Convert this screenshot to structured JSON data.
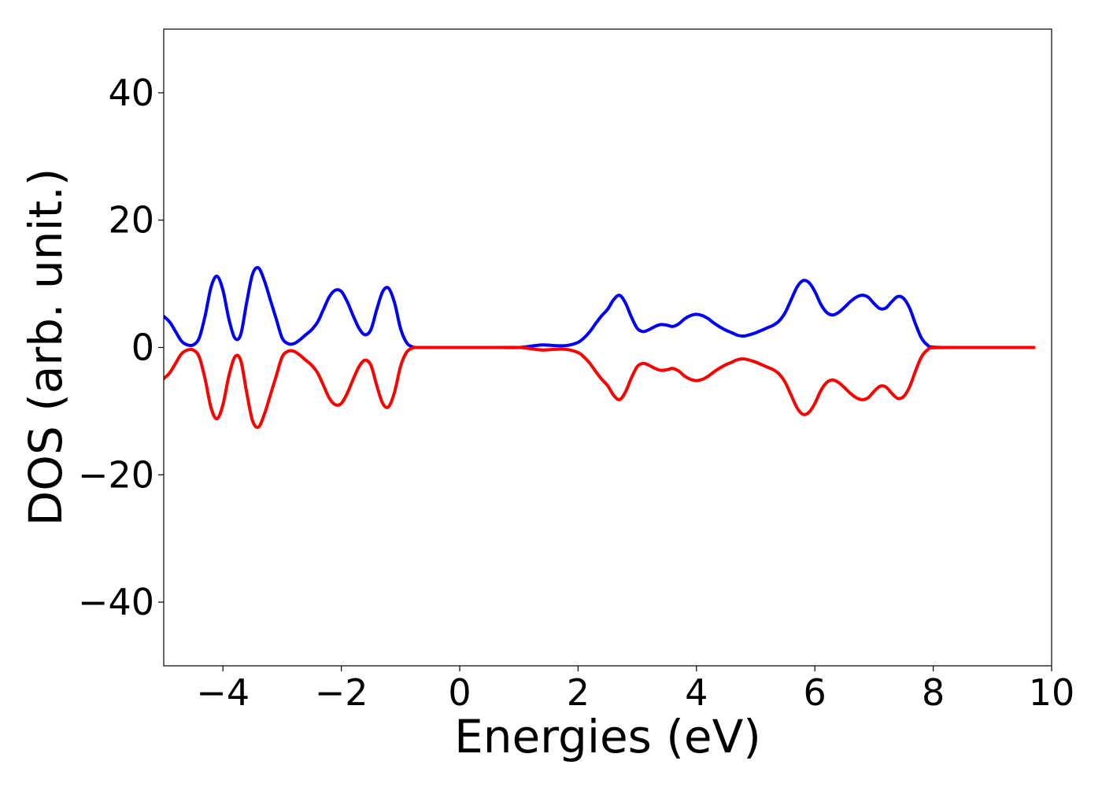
{
  "chart_data": {
    "type": "line",
    "title": "",
    "xlabel": "Energies (eV)",
    "ylabel": "DOS (arb. unit.)",
    "xlim": [
      -5,
      10
    ],
    "ylim": [
      -50,
      50
    ],
    "grid": false,
    "x_ticks": [
      -4,
      -2,
      0,
      2,
      4,
      6,
      8,
      10
    ],
    "x_tick_labels": [
      "−4",
      "−2",
      "0",
      "2",
      "4",
      "6",
      "8",
      "10"
    ],
    "y_ticks": [
      40,
      20,
      0,
      -20,
      -40
    ],
    "y_tick_labels": [
      "40",
      "20",
      "0",
      "−20",
      "−40"
    ],
    "series": [
      {
        "color": "#0000ff",
        "x": [
          -5.0,
          -4.9,
          -4.8,
          -4.7,
          -4.6,
          -4.5,
          -4.4,
          -4.3,
          -4.2,
          -4.1,
          -4.0,
          -3.9,
          -3.8,
          -3.7,
          -3.6,
          -3.5,
          -3.4,
          -3.3,
          -3.2,
          -3.1,
          -3.0,
          -2.9,
          -2.8,
          -2.7,
          -2.6,
          -2.5,
          -2.4,
          -2.3,
          -2.2,
          -2.1,
          -2.0,
          -1.9,
          -1.8,
          -1.7,
          -1.6,
          -1.5,
          -1.4,
          -1.3,
          -1.2,
          -1.1,
          -1.0,
          -0.9,
          -0.8,
          -0.7,
          -0.6,
          -0.5,
          0.0,
          0.5,
          1.0,
          1.2,
          1.4,
          1.6,
          1.8,
          2.0,
          2.1,
          2.2,
          2.3,
          2.4,
          2.5,
          2.6,
          2.7,
          2.8,
          2.9,
          3.0,
          3.1,
          3.2,
          3.3,
          3.4,
          3.5,
          3.6,
          3.7,
          3.8,
          3.9,
          4.0,
          4.1,
          4.2,
          4.3,
          4.4,
          4.5,
          4.6,
          4.7,
          4.8,
          4.9,
          5.0,
          5.1,
          5.2,
          5.3,
          5.4,
          5.5,
          5.6,
          5.7,
          5.8,
          5.9,
          6.0,
          6.1,
          6.2,
          6.3,
          6.4,
          6.5,
          6.6,
          6.7,
          6.8,
          6.9,
          7.0,
          7.1,
          7.2,
          7.3,
          7.4,
          7.5,
          7.6,
          7.7,
          7.8,
          7.9,
          8.0,
          8.5,
          9.0,
          9.5,
          9.7
        ],
        "values": [
          4.9,
          4.0,
          2.5,
          1.0,
          0.4,
          0.4,
          1.5,
          5.0,
          9.5,
          11.2,
          9.0,
          4.5,
          1.5,
          2.0,
          7.0,
          11.5,
          12.5,
          10.5,
          7.5,
          4.5,
          1.5,
          0.6,
          0.6,
          1.2,
          2.0,
          2.8,
          4.0,
          6.0,
          8.0,
          9.0,
          8.8,
          7.2,
          5.0,
          3.0,
          2.0,
          2.8,
          6.0,
          8.8,
          9.3,
          7.0,
          3.0,
          0.8,
          0.1,
          0.0,
          0.0,
          0.0,
          0.0,
          0.0,
          0.0,
          0.2,
          0.4,
          0.3,
          0.3,
          0.8,
          1.5,
          2.5,
          3.8,
          5.0,
          6.0,
          7.5,
          8.2,
          7.0,
          4.8,
          3.0,
          2.5,
          2.8,
          3.3,
          3.6,
          3.5,
          3.3,
          3.7,
          4.5,
          5.0,
          5.2,
          5.0,
          4.5,
          3.8,
          3.2,
          2.7,
          2.3,
          1.9,
          1.8,
          2.0,
          2.3,
          2.7,
          3.1,
          3.5,
          4.2,
          5.5,
          7.5,
          9.5,
          10.5,
          10.2,
          8.8,
          6.8,
          5.5,
          5.1,
          5.5,
          6.3,
          7.2,
          7.9,
          8.2,
          7.9,
          6.9,
          6.1,
          6.2,
          7.2,
          8.0,
          7.7,
          6.2,
          3.7,
          1.5,
          0.4,
          0.05,
          0.0,
          0.0,
          0.0,
          0.0
        ]
      },
      {
        "color": "#ff0000",
        "x": [
          -5.0,
          -4.9,
          -4.8,
          -4.7,
          -4.6,
          -4.5,
          -4.4,
          -4.3,
          -4.2,
          -4.1,
          -4.0,
          -3.9,
          -3.8,
          -3.7,
          -3.6,
          -3.5,
          -3.4,
          -3.3,
          -3.2,
          -3.1,
          -3.0,
          -2.9,
          -2.8,
          -2.7,
          -2.6,
          -2.5,
          -2.4,
          -2.3,
          -2.2,
          -2.1,
          -2.0,
          -1.9,
          -1.8,
          -1.7,
          -1.6,
          -1.5,
          -1.4,
          -1.3,
          -1.2,
          -1.1,
          -1.0,
          -0.9,
          -0.8,
          -0.7,
          -0.6,
          -0.5,
          0.0,
          0.5,
          1.0,
          1.2,
          1.4,
          1.6,
          1.8,
          2.0,
          2.1,
          2.2,
          2.3,
          2.4,
          2.5,
          2.6,
          2.7,
          2.8,
          2.9,
          3.0,
          3.1,
          3.2,
          3.3,
          3.4,
          3.5,
          3.6,
          3.7,
          3.8,
          3.9,
          4.0,
          4.1,
          4.2,
          4.3,
          4.4,
          4.5,
          4.6,
          4.7,
          4.8,
          4.9,
          5.0,
          5.1,
          5.2,
          5.3,
          5.4,
          5.5,
          5.6,
          5.7,
          5.8,
          5.9,
          6.0,
          6.1,
          6.2,
          6.3,
          6.4,
          6.5,
          6.6,
          6.7,
          6.8,
          6.9,
          7.0,
          7.1,
          7.2,
          7.3,
          7.4,
          7.5,
          7.6,
          7.7,
          7.8,
          7.9,
          8.0,
          8.5,
          9.0,
          9.5,
          9.7
        ],
        "values": [
          -4.9,
          -4.0,
          -2.5,
          -1.0,
          -0.4,
          -0.4,
          -1.5,
          -5.0,
          -9.5,
          -11.2,
          -9.0,
          -4.5,
          -1.5,
          -2.0,
          -7.0,
          -11.5,
          -12.5,
          -10.5,
          -7.5,
          -4.5,
          -1.5,
          -0.6,
          -0.6,
          -1.2,
          -2.0,
          -2.8,
          -4.0,
          -6.0,
          -8.0,
          -9.0,
          -8.8,
          -7.2,
          -5.0,
          -3.0,
          -2.0,
          -2.8,
          -6.0,
          -8.8,
          -9.3,
          -7.0,
          -3.0,
          -0.8,
          -0.1,
          0.0,
          0.0,
          0.0,
          0.0,
          0.0,
          0.0,
          -0.2,
          -0.4,
          -0.3,
          -0.3,
          -0.8,
          -1.5,
          -2.5,
          -3.8,
          -5.0,
          -6.0,
          -7.5,
          -8.2,
          -7.0,
          -4.8,
          -3.0,
          -2.5,
          -2.8,
          -3.3,
          -3.6,
          -3.5,
          -3.3,
          -3.7,
          -4.5,
          -5.0,
          -5.2,
          -5.0,
          -4.5,
          -3.8,
          -3.2,
          -2.7,
          -2.3,
          -1.9,
          -1.8,
          -2.0,
          -2.3,
          -2.7,
          -3.1,
          -3.5,
          -4.2,
          -5.5,
          -7.5,
          -9.5,
          -10.5,
          -10.2,
          -8.8,
          -6.8,
          -5.5,
          -5.1,
          -5.5,
          -6.3,
          -7.2,
          -7.9,
          -8.2,
          -7.9,
          -6.9,
          -6.1,
          -6.2,
          -7.2,
          -8.0,
          -7.7,
          -6.2,
          -3.7,
          -1.5,
          -0.4,
          -0.05,
          0.0,
          0.0,
          0.0,
          0.0
        ]
      }
    ]
  }
}
